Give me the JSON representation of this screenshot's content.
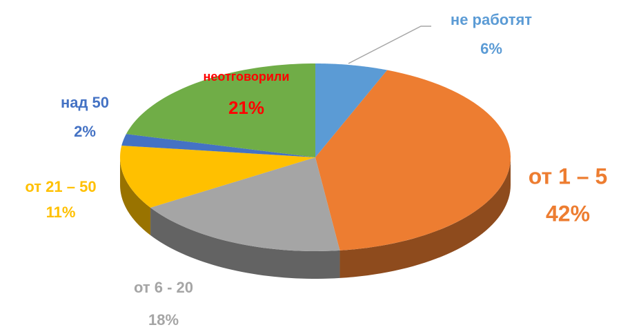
{
  "chart_data": {
    "type": "pie3d",
    "categories": [
      "не работят",
      "от 1 – 5",
      "от 6 - 20",
      "от 21 – 50",
      "над 50",
      "неотговорили"
    ],
    "values": [
      6,
      42,
      18,
      11,
      2,
      21
    ],
    "value_labels": [
      "6%",
      "42%",
      "18%",
      "11%",
      "2%",
      "21%"
    ],
    "colors": [
      "#5b9bd5",
      "#ed7d31",
      "#a5a5a5",
      "#ffc000",
      "#4472c4",
      "#70ad47"
    ],
    "label_colors": [
      "#5b9bd5",
      "#ed7d31",
      "#a5a5a5",
      "#ffc000",
      "#4472c4",
      "#ff0000"
    ]
  }
}
